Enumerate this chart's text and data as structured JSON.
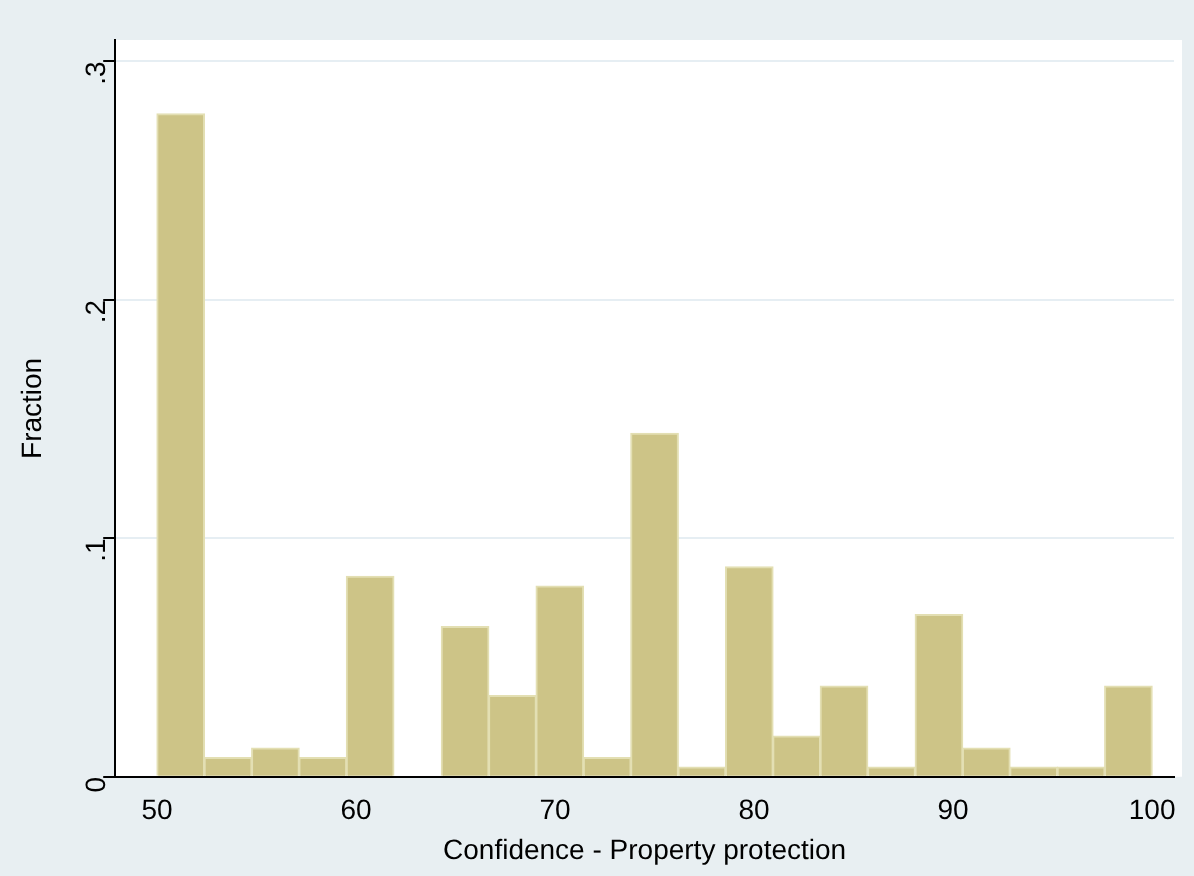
{
  "chart_data": {
    "type": "histogram",
    "xlabel": "Confidence - Property protection",
    "ylabel": "Fraction",
    "bins": [
      50,
      52.38,
      54.76,
      57.14,
      59.52,
      61.9,
      64.29,
      66.67,
      69.05,
      71.43,
      73.81,
      76.19,
      78.57,
      80.95,
      83.33,
      85.71,
      88.1,
      90.48,
      92.86,
      95.24,
      97.62,
      100
    ],
    "values": [
      0.278,
      0.008,
      0.012,
      0.008,
      0.084,
      0,
      0.063,
      0.034,
      0.08,
      0.008,
      0.144,
      0.004,
      0.088,
      0.017,
      0.038,
      0.004,
      0.068,
      0.012,
      0.004,
      0.004,
      0.038
    ],
    "color": "#cdc487",
    "xlim": [
      47.9,
      101.1
    ],
    "ylim": [
      0,
      0.309
    ],
    "xticks": [
      50,
      60,
      70,
      80,
      90,
      100
    ],
    "yticks": [
      {
        "value": 0,
        "label": "0"
      },
      {
        "value": 0.1,
        "label": ".1"
      },
      {
        "value": 0.2,
        "label": ".2"
      },
      {
        "value": 0.3,
        "label": ".3"
      }
    ],
    "grid": "y"
  }
}
